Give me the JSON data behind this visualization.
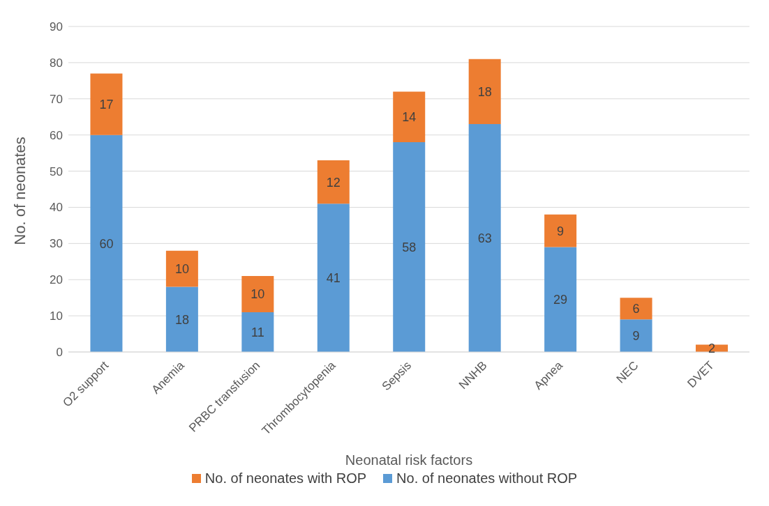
{
  "chart_data": {
    "type": "bar",
    "stacked": true,
    "xlabel": "Neonatal risk factors",
    "ylabel": "No. of neonates",
    "categories": [
      "O2 support",
      "Anemia",
      "PRBC transfusion",
      "Thrombocytopenia",
      "Sepsis",
      "NNHB",
      "Apnea",
      "NEC",
      "DVET"
    ],
    "series": [
      {
        "name": "No. of neonates without ROP",
        "color": "#5b9bd5",
        "values": [
          60,
          18,
          11,
          41,
          58,
          63,
          29,
          9,
          null
        ]
      },
      {
        "name": "No. of neonates with ROP",
        "color": "#ed7d31",
        "values": [
          17,
          10,
          10,
          12,
          14,
          18,
          9,
          6,
          2
        ]
      }
    ],
    "ylim": [
      0,
      90
    ],
    "yticks": [
      0,
      10,
      20,
      30,
      40,
      50,
      60,
      70,
      80,
      90
    ],
    "grid": "y",
    "legend": "bottom",
    "data_labels": true
  }
}
